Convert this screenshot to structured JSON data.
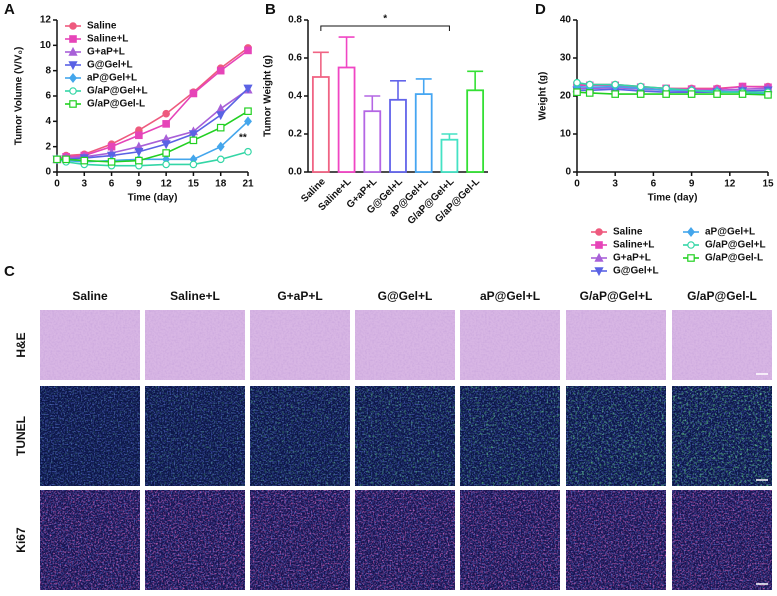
{
  "chart_data": [
    {
      "type": "line",
      "panel": "A",
      "x_label": "Time (day)",
      "y_label": "Tumor Volume (V/V₀)",
      "x": [
        0,
        1,
        3,
        6,
        9,
        12,
        15,
        18,
        21
      ],
      "xlim": [
        0,
        21
      ],
      "xticks": [
        0,
        3,
        6,
        9,
        12,
        15,
        18,
        21
      ],
      "ylim": [
        0,
        12
      ],
      "yticks": [
        0,
        2,
        4,
        6,
        8,
        10,
        12
      ],
      "legend": "upper left",
      "annotation": "**",
      "series": [
        {
          "name": "Saline",
          "color": "#ee5a7e",
          "marker": "circle",
          "values": [
            1,
            1.3,
            1.4,
            2.2,
            3.3,
            4.6,
            6.3,
            8.2,
            9.8
          ]
        },
        {
          "name": "Saline+L",
          "color": "#e644b8",
          "marker": "square",
          "values": [
            1,
            1.2,
            1.3,
            2.0,
            2.9,
            3.8,
            6.2,
            8.0,
            9.6
          ]
        },
        {
          "name": "G+aP+L",
          "color": "#a860d8",
          "marker": "triangle-up",
          "values": [
            1,
            1.1,
            1.2,
            1.5,
            2.0,
            2.6,
            3.2,
            5.0,
            6.5
          ]
        },
        {
          "name": "G@Gel+L",
          "color": "#5a62e4",
          "marker": "triangle-down",
          "values": [
            1,
            1.0,
            1.1,
            1.3,
            1.6,
            2.2,
            3.0,
            4.5,
            6.6
          ]
        },
        {
          "name": "aP@Gel+L",
          "color": "#44a6ec",
          "marker": "diamond",
          "values": [
            1,
            0.9,
            0.8,
            0.9,
            1.0,
            1.0,
            1.0,
            2.0,
            4.0
          ]
        },
        {
          "name": "G/aP@Gel+L",
          "color": "#34d6a6",
          "marker": "circle-open",
          "values": [
            1,
            0.8,
            0.6,
            0.5,
            0.5,
            0.6,
            0.6,
            1.0,
            1.6
          ]
        },
        {
          "name": "G/aP@Gel-L",
          "color": "#22d022",
          "marker": "square-open",
          "values": [
            1,
            1.0,
            0.9,
            0.8,
            0.9,
            1.5,
            2.5,
            3.5,
            4.8
          ]
        }
      ]
    },
    {
      "type": "bar",
      "panel": "B",
      "y_label": "Tumor Weight (g)",
      "annotation": "*",
      "categories": [
        "Saline",
        "Saline+L",
        "G+aP+L",
        "G@Gel+L",
        "aP@Gel+L",
        "G/aP@Gel+L",
        "G/aP@Gel-L"
      ],
      "values": [
        0.5,
        0.55,
        0.32,
        0.38,
        0.41,
        0.17,
        0.43
      ],
      "errors": [
        0.13,
        0.16,
        0.08,
        0.1,
        0.08,
        0.03,
        0.1
      ],
      "colors": [
        "#f06484",
        "#f046c4",
        "#b466e4",
        "#6264ea",
        "#46a6f2",
        "#44e2c4",
        "#34e034"
      ],
      "ylim": [
        0,
        0.8
      ],
      "yticks": [
        {
          "value": 0,
          "label": "0.0"
        },
        0.2,
        0.4,
        0.6,
        0.8
      ]
    },
    {
      "type": "line",
      "panel": "D",
      "x_label": "Time (day)",
      "y_label": "Weight (g)",
      "x": [
        0,
        1,
        3,
        5,
        7,
        9,
        11,
        13,
        15
      ],
      "xlim": [
        0,
        15
      ],
      "xticks": [
        0,
        3,
        6,
        9,
        12,
        15
      ],
      "ylim": [
        0,
        40
      ],
      "yticks": [
        0,
        10,
        20,
        30,
        40
      ],
      "legend": "below",
      "series": [
        {
          "name": "Saline",
          "color": "#ee5a7e",
          "marker": "circle",
          "values": [
            23,
            23,
            23,
            22.5,
            22,
            22,
            22,
            22.5,
            22.5
          ]
        },
        {
          "name": "Saline+L",
          "color": "#e644b8",
          "marker": "square",
          "values": [
            22.8,
            22.8,
            22.8,
            22.3,
            22,
            21.8,
            21.8,
            22.5,
            22.3
          ]
        },
        {
          "name": "G+aP+L",
          "color": "#a860d8",
          "marker": "triangle-up",
          "values": [
            22,
            22,
            22.2,
            21.8,
            21.5,
            21.3,
            21.5,
            21.8,
            22
          ]
        },
        {
          "name": "G@Gel+L",
          "color": "#5a62e4",
          "marker": "triangle-down",
          "values": [
            21.5,
            21.5,
            21.8,
            21.3,
            21,
            21,
            21,
            21.3,
            21.5
          ]
        },
        {
          "name": "aP@Gel+L",
          "color": "#44a6ec",
          "marker": "diamond",
          "values": [
            22.5,
            22.3,
            22.5,
            22,
            21.5,
            21.5,
            21.3,
            21,
            20.5
          ]
        },
        {
          "name": "G/aP@Gel+L",
          "color": "#34d6a6",
          "marker": "circle-open",
          "values": [
            23.5,
            23,
            23,
            22.5,
            22,
            21.5,
            21,
            21,
            21
          ]
        },
        {
          "name": "G/aP@Gel-L",
          "color": "#22d022",
          "marker": "square-open",
          "values": [
            21,
            20.8,
            20.5,
            20.5,
            20.5,
            20.5,
            20.5,
            20.5,
            20.3
          ]
        }
      ]
    }
  ],
  "panel_c": {
    "panel": "C",
    "columns": [
      "Saline",
      "Saline+L",
      "G+aP+L",
      "G@Gel+L",
      "aP@Gel+L",
      "G/aP@Gel+L",
      "G/aP@Gel-L"
    ],
    "rows": [
      "H&E",
      "TUNEL",
      "Ki67"
    ]
  }
}
